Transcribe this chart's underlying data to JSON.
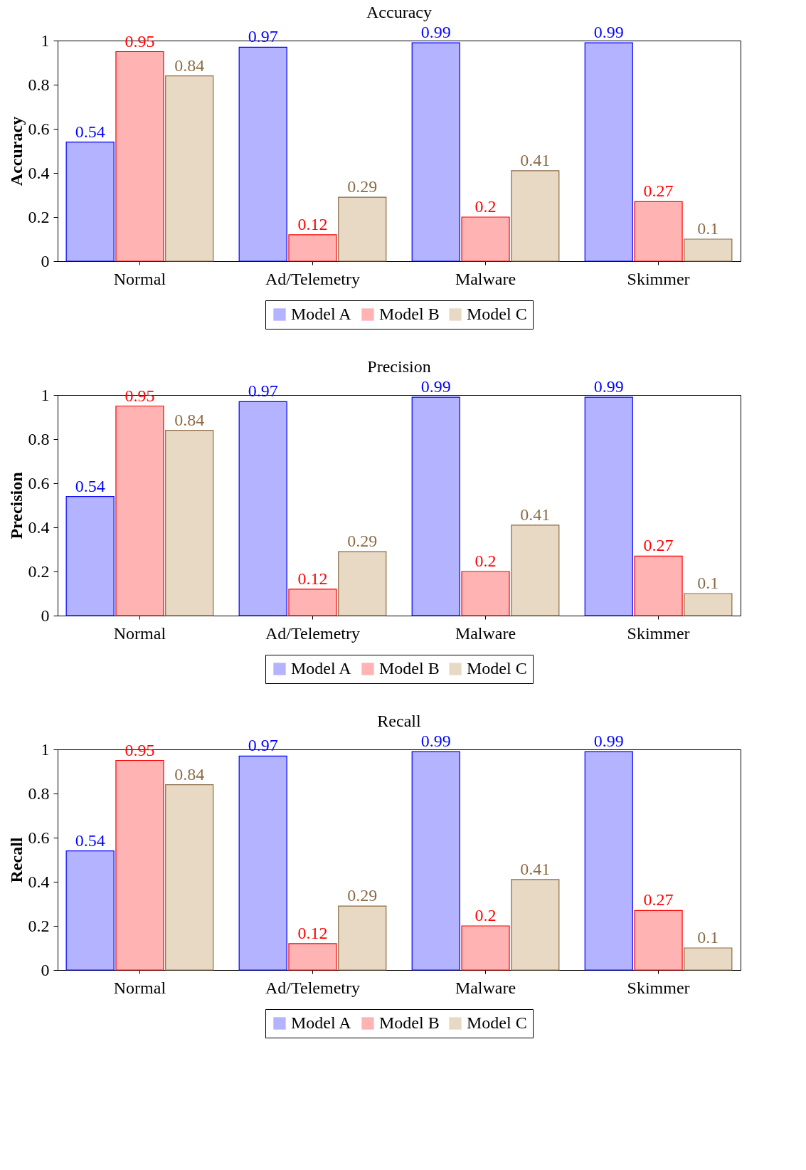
{
  "chart_data": [
    {
      "type": "bar",
      "title": "Accuracy",
      "ylabel": "Accuracy",
      "categories": [
        "Normal",
        "Ad/Telemetry",
        "Malware",
        "Skimmer"
      ],
      "series": [
        {
          "name": "Model A",
          "color": "#b3b3ff",
          "values": [
            0.54,
            0.97,
            0.99,
            0.99
          ]
        },
        {
          "name": "Model B",
          "color": "#ffb3b3",
          "values": [
            0.95,
            0.12,
            0.2,
            0.27
          ]
        },
        {
          "name": "Model C",
          "color": "#e8d9c4",
          "values": [
            0.84,
            0.29,
            0.41,
            0.1
          ]
        }
      ],
      "ylim": [
        0,
        1
      ],
      "yticks": [
        0,
        0.2,
        0.4,
        0.6,
        0.8,
        1
      ],
      "data_labels": true,
      "legend": "bottom",
      "grid": false
    },
    {
      "type": "bar",
      "title": "Precision",
      "ylabel": "Precision",
      "categories": [
        "Normal",
        "Ad/Telemetry",
        "Malware",
        "Skimmer"
      ],
      "series": [
        {
          "name": "Model A",
          "color": "#b3b3ff",
          "values": [
            0.54,
            0.97,
            0.99,
            0.99
          ]
        },
        {
          "name": "Model B",
          "color": "#ffb3b3",
          "values": [
            0.95,
            0.12,
            0.2,
            0.27
          ]
        },
        {
          "name": "Model C",
          "color": "#e8d9c4",
          "values": [
            0.84,
            0.29,
            0.41,
            0.1
          ]
        }
      ],
      "ylim": [
        0,
        1
      ],
      "yticks": [
        0,
        0.2,
        0.4,
        0.6,
        0.8,
        1
      ],
      "data_labels": true,
      "legend": "bottom",
      "grid": false
    },
    {
      "type": "bar",
      "title": "Recall",
      "ylabel": "Recall",
      "categories": [
        "Normal",
        "Ad/Telemetry",
        "Malware",
        "Skimmer"
      ],
      "series": [
        {
          "name": "Model A",
          "color": "#b3b3ff",
          "values": [
            0.54,
            0.97,
            0.99,
            0.99
          ]
        },
        {
          "name": "Model B",
          "color": "#ffb3b3",
          "values": [
            0.95,
            0.12,
            0.2,
            0.27
          ]
        },
        {
          "name": "Model C",
          "color": "#e8d9c4",
          "values": [
            0.84,
            0.29,
            0.41,
            0.1
          ]
        }
      ],
      "ylim": [
        0,
        1
      ],
      "yticks": [
        0,
        0.2,
        0.4,
        0.6,
        0.8,
        1
      ],
      "data_labels": true,
      "legend": "bottom",
      "grid": false
    }
  ]
}
